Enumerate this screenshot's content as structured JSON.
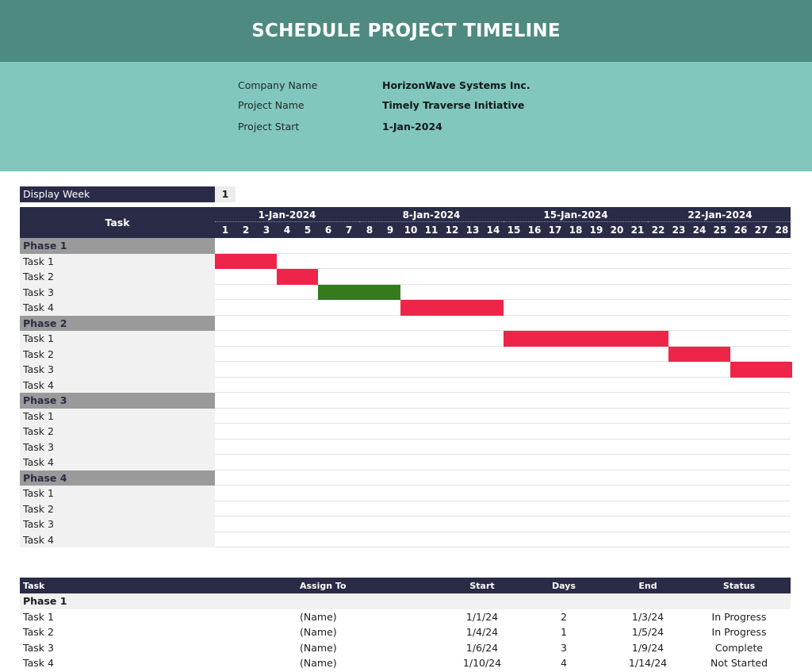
{
  "title": "SCHEDULE PROJECT TIMELINE",
  "info": [
    {
      "label": "Company Name",
      "value": "HorizonWave Systems Inc."
    },
    {
      "label": "Project Name",
      "value": "Timely Traverse Initiative"
    },
    {
      "label": "Project Start",
      "value": "1-Jan-2024"
    }
  ],
  "display_week": {
    "label": "Display Week",
    "value": "1"
  },
  "gantt": {
    "task_header": "Task",
    "weeks": [
      "1-Jan-2024",
      "8-Jan-2024",
      "15-Jan-2024",
      "22-Jan-2024"
    ],
    "days": [
      "1",
      "2",
      "3",
      "4",
      "5",
      "6",
      "7",
      "8",
      "9",
      "10",
      "11",
      "12",
      "13",
      "14",
      "15",
      "16",
      "17",
      "18",
      "19",
      "20",
      "21",
      "22",
      "23",
      "24",
      "25",
      "26",
      "27",
      "28"
    ],
    "colors": {
      "not_started": "#ee2548",
      "complete": "#357a1d"
    },
    "rows": [
      {
        "label": "Phase 1",
        "type": "phase"
      },
      {
        "label": "Task 1",
        "type": "task",
        "bar": {
          "start_day": 1,
          "end_day": 3,
          "status": "not_started"
        }
      },
      {
        "label": "Task 2",
        "type": "task",
        "bar": {
          "start_day": 4,
          "end_day": 5,
          "status": "not_started"
        }
      },
      {
        "label": "Task 3",
        "type": "task",
        "bar": {
          "start_day": 6,
          "end_day": 9,
          "status": "complete"
        }
      },
      {
        "label": "Task 4",
        "type": "task",
        "bar": {
          "start_day": 10,
          "end_day": 14,
          "status": "not_started"
        }
      },
      {
        "label": "Phase 2",
        "type": "phase"
      },
      {
        "label": "Task 1",
        "type": "task",
        "bar": {
          "start_day": 15,
          "end_day": 22,
          "status": "not_started"
        }
      },
      {
        "label": "Task 2",
        "type": "task",
        "bar": {
          "start_day": 23,
          "end_day": 25,
          "status": "not_started"
        }
      },
      {
        "label": "Task 3",
        "type": "task",
        "bar": {
          "start_day": 26,
          "end_day": 28,
          "status": "not_started"
        }
      },
      {
        "label": "Task 4",
        "type": "task"
      },
      {
        "label": "Phase 3",
        "type": "phase"
      },
      {
        "label": "Task 1",
        "type": "task"
      },
      {
        "label": "Task 2",
        "type": "task"
      },
      {
        "label": "Task 3",
        "type": "task"
      },
      {
        "label": "Task 4",
        "type": "task"
      },
      {
        "label": "Phase 4",
        "type": "phase"
      },
      {
        "label": "Task 1",
        "type": "task"
      },
      {
        "label": "Task 2",
        "type": "task"
      },
      {
        "label": "Task 3",
        "type": "task"
      },
      {
        "label": "Task 4",
        "type": "task"
      }
    ]
  },
  "table": {
    "headers": {
      "task": "Task",
      "assign": "Assign To",
      "start": "Start",
      "days": "Days",
      "end": "End",
      "status": "Status"
    },
    "phase_label": "Phase 1",
    "rows": [
      {
        "task": "Task 1",
        "assign": "(Name)",
        "start": "1/1/24",
        "days": "2",
        "end": "1/3/24",
        "status": "In Progress"
      },
      {
        "task": "Task 2",
        "assign": "(Name)",
        "start": "1/4/24",
        "days": "1",
        "end": "1/5/24",
        "status": "In Progress"
      },
      {
        "task": "Task 3",
        "assign": "(Name)",
        "start": "1/6/24",
        "days": "3",
        "end": "1/9/24",
        "status": "Complete"
      },
      {
        "task": "Task 4",
        "assign": "(Name)",
        "start": "1/10/24",
        "days": "4",
        "end": "1/14/24",
        "status": "Not Started"
      }
    ]
  }
}
